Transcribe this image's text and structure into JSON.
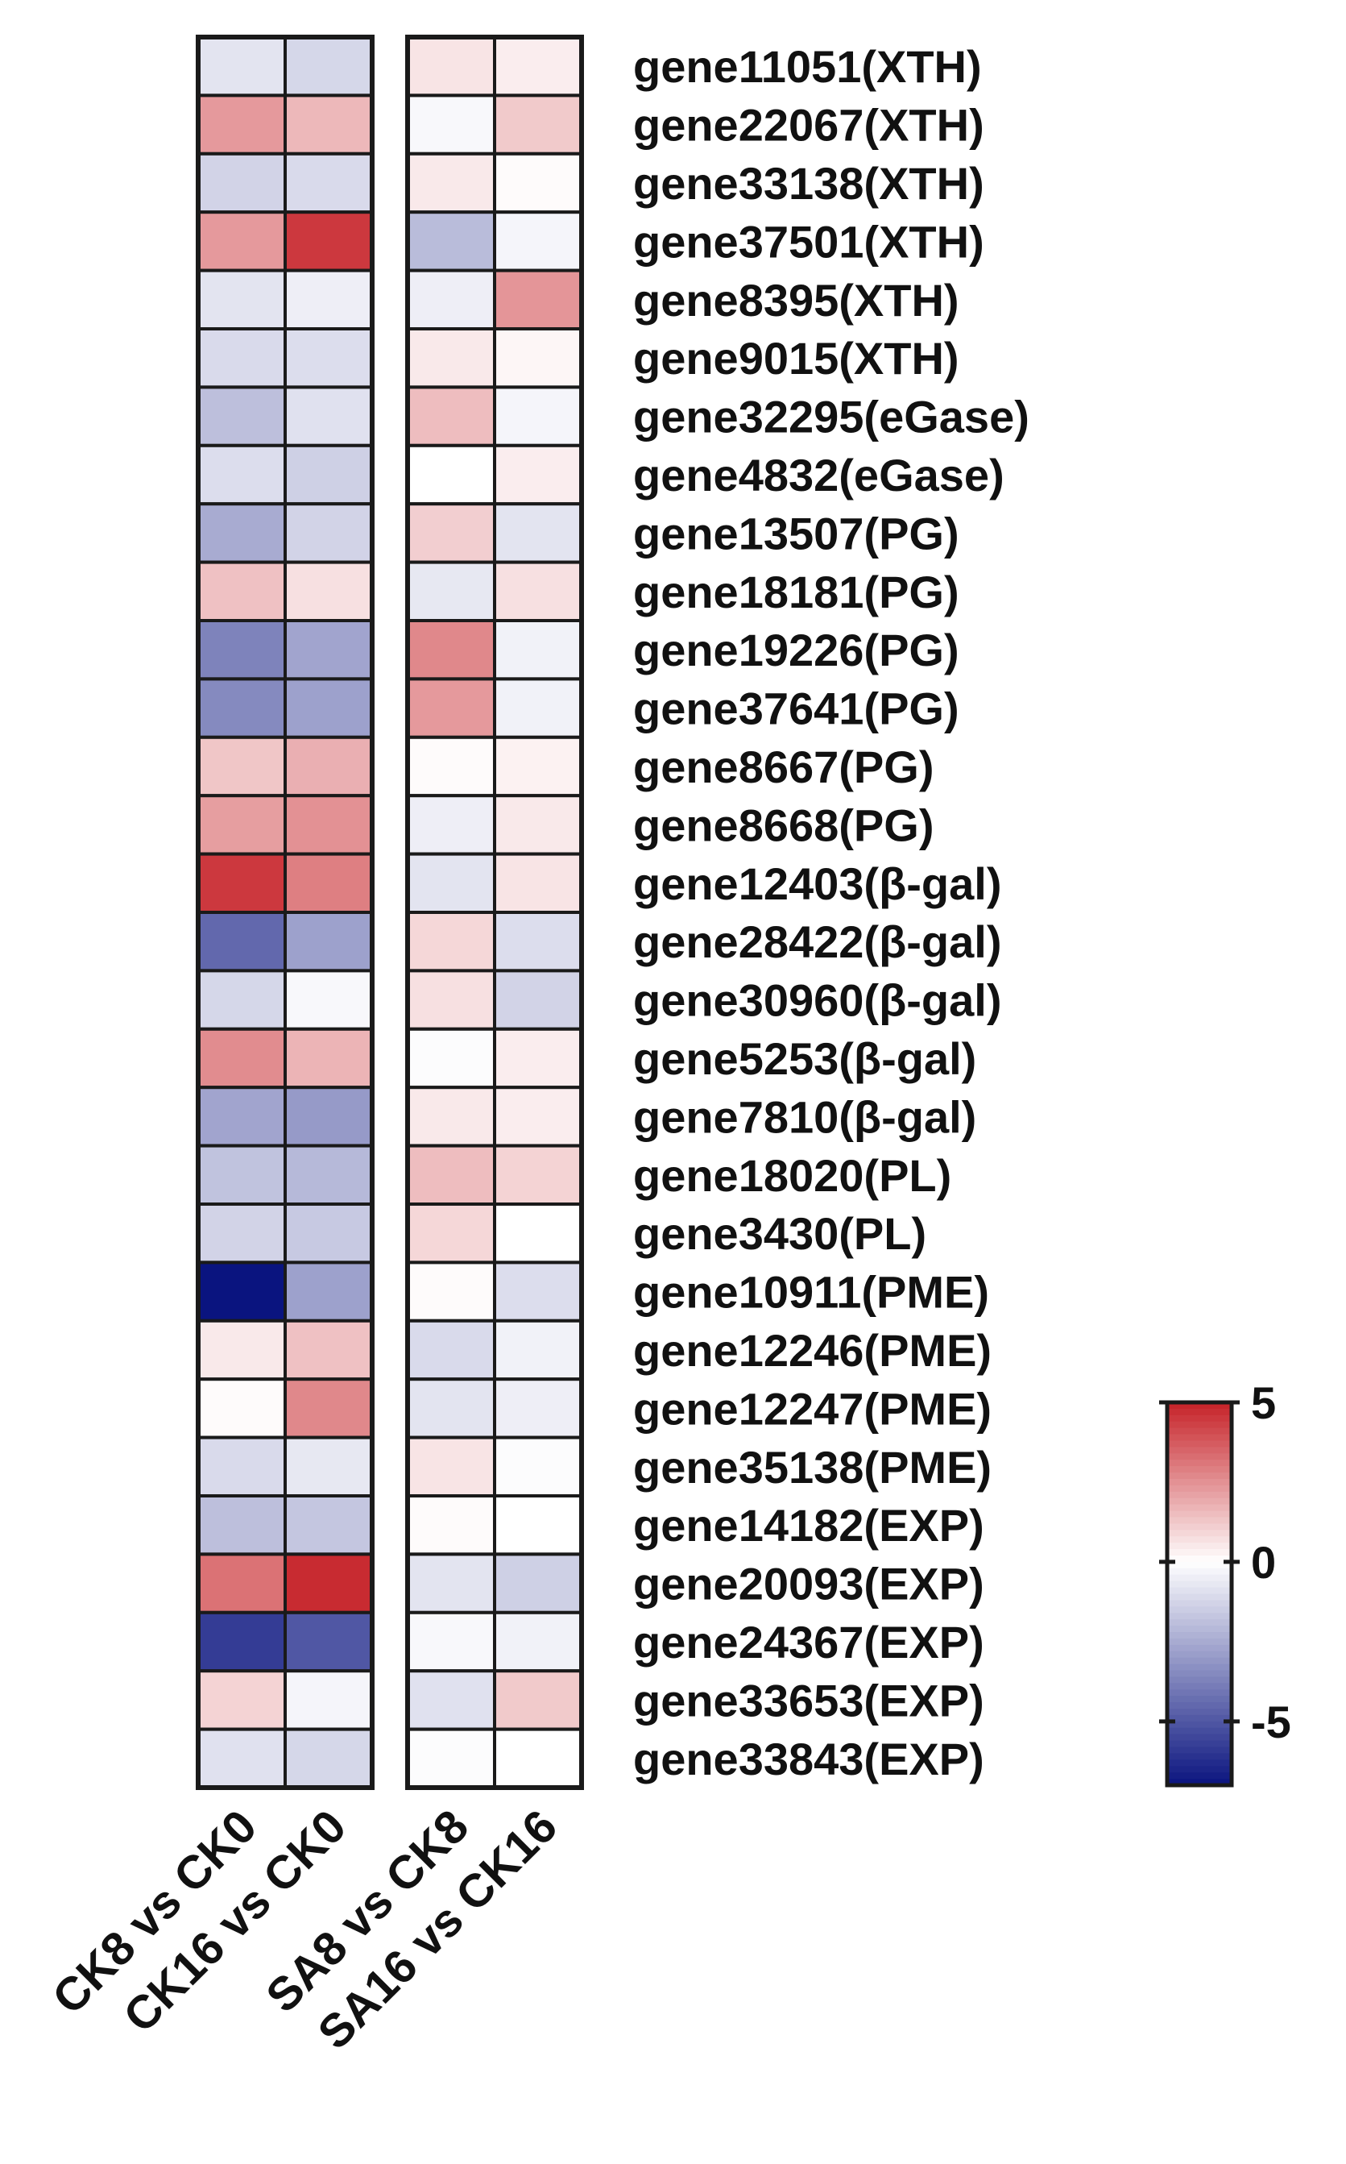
{
  "chart_data": {
    "type": "heatmap",
    "title": "",
    "xlabel": "",
    "ylabel": "",
    "column_groups": [
      {
        "columns": [
          "CK8 vs CK0",
          "CK16 vs CK0"
        ]
      },
      {
        "columns": [
          "SA8 vs CK8",
          "SA16 vs CK16"
        ]
      }
    ],
    "rows": [
      "gene11051(XTH)",
      "gene22067(XTH)",
      "gene33138(XTH)",
      "gene37501(XTH)",
      "gene8395(XTH)",
      "gene9015(XTH)",
      "gene32295(eGase)",
      "gene4832(eGase)",
      "gene13507(PG)",
      "gene18181(PG)",
      "gene19226(PG)",
      "gene37641(PG)",
      "gene8667(PG)",
      "gene8668(PG)",
      "gene12403(β-gal)",
      "gene28422(β-gal)",
      "gene30960(β-gal)",
      "gene5253(β-gal)",
      "gene7810(β-gal)",
      "gene18020(PL)",
      "gene3430(PL)",
      "gene10911(PME)",
      "gene12246(PME)",
      "gene12247(PME)",
      "gene35138(PME)",
      "gene14182(EXP)",
      "gene20093(EXP)",
      "gene24367(EXP)",
      "gene33653(EXP)",
      "gene33843(EXP)"
    ],
    "values": [
      [
        -0.8,
        -1.2,
        0.6,
        0.4
      ],
      [
        2.3,
        1.6,
        -0.2,
        1.2
      ],
      [
        -1.3,
        -1.1,
        0.5,
        0.1
      ],
      [
        2.3,
        4.5,
        -2.0,
        -0.3
      ],
      [
        -0.8,
        -0.5,
        -0.5,
        2.4
      ],
      [
        -1.1,
        -1.0,
        0.5,
        0.2
      ],
      [
        -1.9,
        -0.9,
        1.5,
        -0.3
      ],
      [
        -1.0,
        -1.4,
        0.0,
        0.4
      ],
      [
        -2.5,
        -1.3,
        1.1,
        -0.8
      ],
      [
        1.4,
        0.7,
        -0.7,
        0.7
      ],
      [
        -3.7,
        -2.7,
        2.7,
        -0.4
      ],
      [
        -3.5,
        -2.8,
        2.3,
        -0.4
      ],
      [
        1.3,
        1.8,
        0.1,
        0.3
      ],
      [
        2.2,
        2.5,
        -0.5,
        0.5
      ],
      [
        4.5,
        2.9,
        -0.8,
        0.6
      ],
      [
        -4.5,
        -2.8,
        0.9,
        -1.0
      ],
      [
        -1.2,
        -0.2,
        0.7,
        -1.3
      ],
      [
        2.6,
        1.7,
        -0.1,
        0.4
      ],
      [
        -2.7,
        -3.0,
        0.5,
        0.4
      ],
      [
        -1.8,
        -2.1,
        1.5,
        1.0
      ],
      [
        -1.3,
        -1.6,
        0.9,
        0.0
      ],
      [
        -7.0,
        -2.8,
        0.1,
        -1.0
      ],
      [
        0.5,
        1.4,
        -1.1,
        -0.4
      ],
      [
        0.1,
        2.7,
        -0.8,
        -0.5
      ],
      [
        -1.1,
        -0.7,
        0.6,
        -0.1
      ],
      [
        -1.9,
        -1.7,
        0.1,
        0.0
      ],
      [
        3.2,
        4.8,
        -0.8,
        -1.4
      ],
      [
        -5.8,
        -5.0,
        -0.2,
        -0.4
      ],
      [
        1.0,
        -0.3,
        -0.9,
        1.2
      ],
      [
        -0.9,
        -1.2,
        -0.1,
        0.0
      ]
    ],
    "colorbar": {
      "min": -7,
      "max": 5,
      "ticks": [
        5,
        0,
        -5
      ],
      "tick_labels": [
        "5",
        "0",
        "-5"
      ],
      "colors": {
        "low": "#0a147f",
        "mid": "#ffffff",
        "high": "#c62228"
      }
    },
    "legend_position": "right"
  }
}
